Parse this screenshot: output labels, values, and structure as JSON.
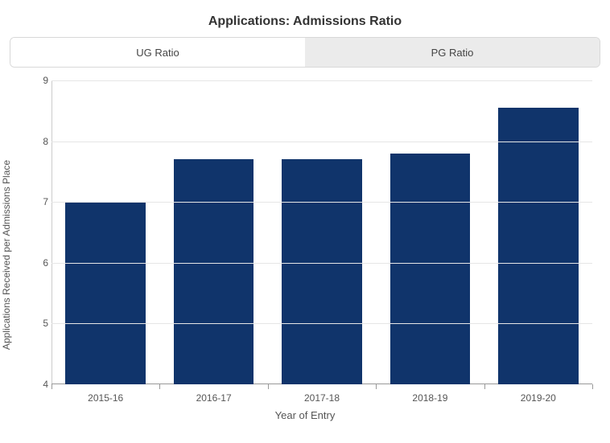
{
  "title": "Applications: Admissions Ratio",
  "title_fontsize": 16,
  "tabs": {
    "items": [
      {
        "label": "UG Ratio",
        "active": true
      },
      {
        "label": "PG Ratio",
        "active": false
      }
    ]
  },
  "chart": {
    "type": "bar",
    "ylabel": "Applications Received per Admissions Place",
    "xlabel": "Year of Entry",
    "label_fontsize": 12,
    "ylim": [
      4,
      9
    ],
    "ytick_step": 1,
    "yticks": [
      4,
      5,
      6,
      7,
      8,
      9
    ],
    "categories": [
      "2015-16",
      "2016-17",
      "2017-18",
      "2018-19",
      "2019-20"
    ],
    "values": [
      7.0,
      7.7,
      7.7,
      7.8,
      8.55
    ],
    "bar_color": "#10346b",
    "bar_width": 0.74,
    "background_color": "#ffffff",
    "grid_color": "#e6e6e6",
    "axis_line_color": "#999999",
    "text_color": "#555555"
  }
}
